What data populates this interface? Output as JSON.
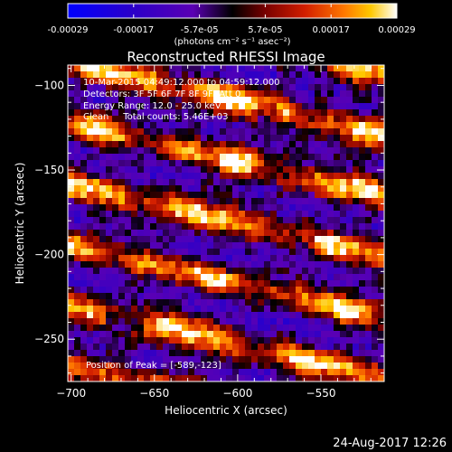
{
  "colorbar": {
    "tick_labels": [
      "-0.00029",
      "-0.00017",
      "-5.7e-05",
      "5.7e-05",
      "0.00017",
      "0.00029"
    ],
    "unit_label": "(photons cm⁻² s⁻¹ asec⁻²)",
    "range": [
      -0.00029,
      0.00029
    ],
    "colors": [
      "#0000ff",
      "#2c00c8",
      "#5a00b4",
      "#000000",
      "#780000",
      "#d21e00",
      "#ff7800",
      "#ffc800",
      "#ffffff"
    ]
  },
  "image": {
    "title": "Reconstructed RHESSI Image",
    "xlabel": "Heliocentric X (arcsec)",
    "ylabel": "Heliocentric Y (arcsec)",
    "xlim": [
      -702,
      -512
    ],
    "ylim": [
      -275,
      -88
    ],
    "x_ticks": [
      {
        "value": -700,
        "label": "−700"
      },
      {
        "value": -650,
        "label": "−650"
      },
      {
        "value": -600,
        "label": "−600"
      },
      {
        "value": -550,
        "label": "−550"
      }
    ],
    "y_ticks": [
      {
        "value": -100,
        "label": "−100"
      },
      {
        "value": -150,
        "label": "−150"
      },
      {
        "value": -200,
        "label": "−200"
      },
      {
        "value": -250,
        "label": "−250"
      }
    ],
    "annotations": {
      "time_range": "10-Mar-2015 04:49:12.000 to 04:59:12.000",
      "detectors": "Detectors: 3F 5F 6F 7F 8F 9F, Att 0",
      "energy": "Energy Range: 12.0 - 25.0 keV",
      "method": "Clean     Total counts: 5.46E+03",
      "peak": "Position of Peak = [-589,-123]"
    }
  },
  "footer": {
    "timestamp": "24-Aug-2017 12:26"
  }
}
